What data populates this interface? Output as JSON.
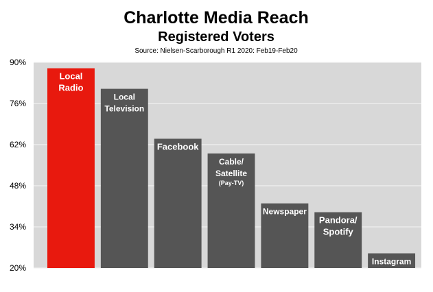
{
  "chart_data": {
    "type": "bar",
    "title": "Charlotte Media Reach",
    "subtitle": "Registered Voters",
    "source": "Source: Nielsen-Scarborough R1 2020: Feb19-Feb20",
    "categories": [
      {
        "label": [
          "Local",
          "Radio"
        ]
      },
      {
        "label": [
          "Local",
          "Television"
        ]
      },
      {
        "label": [
          "Facebook"
        ]
      },
      {
        "label": [
          "Cable/",
          "Satellite"
        ],
        "sublabel": "(Pay-TV)"
      },
      {
        "label": [
          "Newspaper"
        ]
      },
      {
        "label": [
          "Pandora/",
          "Spotify"
        ]
      },
      {
        "label": [
          "Instagram"
        ]
      }
    ],
    "values": [
      88,
      81,
      64,
      59,
      42,
      39,
      25
    ],
    "colors": [
      "#e8190e",
      "#555555",
      "#555555",
      "#555555",
      "#555555",
      "#555555",
      "#555555"
    ],
    "ylim": [
      20,
      90
    ],
    "yticks": [
      20,
      34,
      48,
      62,
      76,
      90
    ],
    "ytick_labels": [
      "20%",
      "34%",
      "48%",
      "62%",
      "76%",
      "90%"
    ],
    "grid": true,
    "plot_background": "#d8d8d8",
    "gridline_color": "#f0f0f0"
  }
}
